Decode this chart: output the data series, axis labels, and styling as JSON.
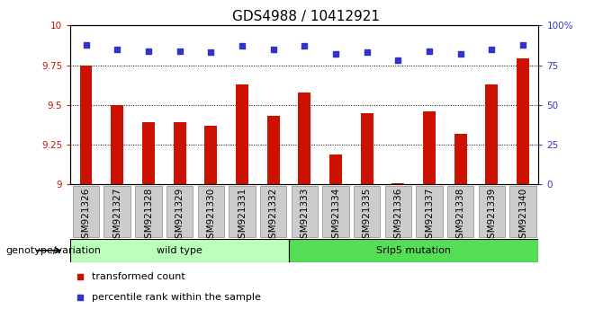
{
  "title": "GDS4988 / 10412921",
  "samples": [
    "GSM921326",
    "GSM921327",
    "GSM921328",
    "GSM921329",
    "GSM921330",
    "GSM921331",
    "GSM921332",
    "GSM921333",
    "GSM921334",
    "GSM921335",
    "GSM921336",
    "GSM921337",
    "GSM921338",
    "GSM921339",
    "GSM921340"
  ],
  "bar_values": [
    9.75,
    9.5,
    9.39,
    9.39,
    9.37,
    9.63,
    9.43,
    9.58,
    9.19,
    9.45,
    9.01,
    9.46,
    9.32,
    9.63,
    9.79
  ],
  "dot_values": [
    88,
    85,
    84,
    84,
    83,
    87,
    85,
    87,
    82,
    83,
    78,
    84,
    82,
    85,
    88
  ],
  "bar_color": "#cc1100",
  "dot_color": "#3333cc",
  "ylim_left": [
    9.0,
    10.0
  ],
  "ylim_right": [
    0,
    100
  ],
  "yticks_left": [
    9.0,
    9.25,
    9.5,
    9.75,
    10.0
  ],
  "ytick_labels_left": [
    "9",
    "9.25",
    "9.5",
    "9.75",
    "10"
  ],
  "yticks_right": [
    0,
    25,
    50,
    75,
    100
  ],
  "ytick_labels_right": [
    "0",
    "25",
    "50",
    "75",
    "100%"
  ],
  "hlines": [
    9.25,
    9.5,
    9.75
  ],
  "bar_width": 0.4,
  "wt_count": 7,
  "mut_count": 8,
  "wt_label": "wild type",
  "mut_label": "Srlp5 mutation",
  "wt_color": "#bbffbb",
  "mut_color": "#55dd55",
  "group_row_label": "genotype/variation",
  "legend_bar_label": "transformed count",
  "legend_dot_label": "percentile rank within the sample",
  "title_fontsize": 11,
  "tick_fontsize": 7.5,
  "label_fontsize": 8
}
